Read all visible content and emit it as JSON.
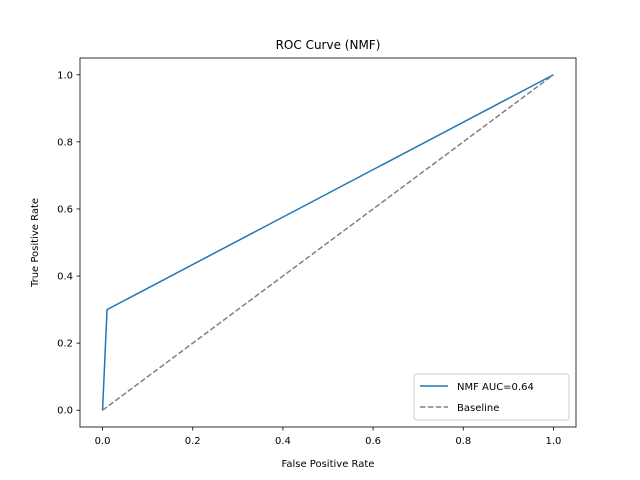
{
  "chart_data": {
    "type": "line",
    "title": "ROC Curve (NMF)",
    "xlabel": "False Positive Rate",
    "ylabel": "True Positive Rate",
    "xlim": [
      -0.05,
      1.05
    ],
    "ylim": [
      -0.05,
      1.05
    ],
    "xticks": [
      0.0,
      0.2,
      0.4,
      0.6,
      0.8,
      1.0
    ],
    "yticks": [
      0.0,
      0.2,
      0.4,
      0.6,
      0.8,
      1.0
    ],
    "xtick_labels": [
      "0.0",
      "0.2",
      "0.4",
      "0.6",
      "0.8",
      "1.0"
    ],
    "ytick_labels": [
      "0.0",
      "0.2",
      "0.4",
      "0.6",
      "0.8",
      "1.0"
    ],
    "grid": false,
    "legend_position": "lower-right",
    "series": [
      {
        "name": "NMF AUC=0.64",
        "color": "#1f77b4",
        "style": "solid",
        "x": [
          0.0,
          0.01,
          1.0
        ],
        "y": [
          0.0,
          0.3,
          1.0
        ]
      },
      {
        "name": "Baseline",
        "color": "#808080",
        "style": "dashed",
        "x": [
          0.0,
          1.0
        ],
        "y": [
          0.0,
          1.0
        ]
      }
    ]
  }
}
